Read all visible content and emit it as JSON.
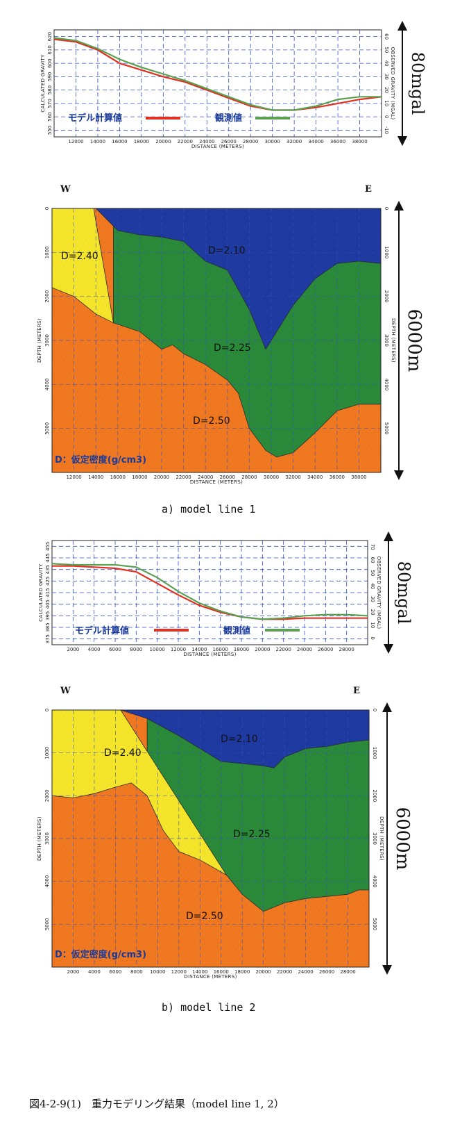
{
  "caption": "図4-2-9(1)　重力モデリング結果（model line 1, 2）",
  "chart_data": [
    {
      "id": "gravity_line1",
      "type": "line",
      "xlabel": "DISTANCE (METERS)",
      "ylabel_left": "CALCULATED GRAVITY",
      "ylabel_right": "OBSERVED GRAVITY (MGAL)",
      "xlim": [
        10000,
        40000
      ],
      "x_ticks": [
        12000,
        14000,
        16000,
        18000,
        20000,
        22000,
        24000,
        26000,
        28000,
        30000,
        32000,
        34000,
        36000,
        38000
      ],
      "y_left_ticks": [
        620,
        610,
        600,
        590,
        580,
        570,
        560,
        550
      ],
      "y_right_ticks": [
        60,
        50,
        40,
        30,
        20,
        10,
        0,
        -10
      ],
      "ylim_left": [
        545,
        625
      ],
      "ylim_right": [
        -15,
        65
      ],
      "scale_label": "80mgal",
      "series": [
        {
          "name": "モデル計算値",
          "color": "#e03020",
          "x": [
            10000,
            12000,
            14000,
            16000,
            18000,
            20000,
            22000,
            24000,
            26000,
            28000,
            30000,
            32000,
            34000,
            36000,
            38000,
            40000
          ],
          "values": [
            618,
            616,
            610,
            600,
            595,
            590,
            586,
            580,
            574,
            568,
            565,
            565,
            567,
            570,
            573,
            575
          ]
        },
        {
          "name": "観測値",
          "color": "#5aa050",
          "x": [
            10000,
            12000,
            14000,
            16000,
            18000,
            20000,
            22000,
            24000,
            26000,
            28000,
            30000,
            32000,
            34000,
            36000,
            38000,
            40000
          ],
          "values": [
            619,
            617,
            611,
            603,
            597,
            592,
            587,
            581,
            575,
            569,
            565,
            565,
            568,
            573,
            575,
            575
          ]
        }
      ]
    },
    {
      "id": "density_line1",
      "type": "area",
      "xlabel": "DISTANCE (METERS)",
      "ylabel_left": "DEPTH (METERS)",
      "ylabel_right": "DEPTH (METERS)",
      "xlim": [
        10000,
        40000
      ],
      "ylim": [
        6000,
        0
      ],
      "x_ticks": [
        12000,
        14000,
        16000,
        18000,
        20000,
        22000,
        24000,
        26000,
        28000,
        30000,
        32000,
        34000,
        36000,
        38000
      ],
      "y_ticks": [
        0,
        1000,
        2000,
        3000,
        4000,
        5000
      ],
      "west_label": "W",
      "east_label": "E",
      "scale_label": "6000m",
      "note": "D：仮定密度(g/cm3)",
      "layers": [
        {
          "name": "D=2.40",
          "color": "#f5e52a",
          "top_x": [
            10000,
            13800
          ],
          "top_y": [
            0,
            0
          ],
          "bottom_x": [
            10000,
            12000,
            14000,
            15600
          ],
          "bottom_y": [
            1800,
            2000,
            2400,
            2600
          ]
        },
        {
          "name": "D=2.10",
          "color": "#1f3aa0",
          "top_x": [
            13800,
            40000
          ],
          "top_y": [
            0,
            0
          ],
          "bottom_x": [
            14000,
            16000,
            18000,
            20000,
            22000,
            24000,
            26000,
            28000,
            29500,
            30500,
            32000,
            34000,
            36000,
            38000,
            40000
          ],
          "bottom_y": [
            0,
            500,
            600,
            650,
            750,
            1200,
            1400,
            2300,
            3200,
            2800,
            2200,
            1600,
            1250,
            1200,
            1250
          ]
        },
        {
          "name": "D=2.25",
          "color": "#2a8a3a",
          "top_x": [
            13800,
            40000
          ],
          "top_y": [
            0,
            0
          ],
          "bottom_x": [
            15600,
            18000,
            20000,
            21000,
            22000,
            24000,
            26000,
            27000,
            28000,
            29500,
            30500,
            32000,
            34000,
            36000,
            38000,
            40000
          ],
          "bottom_y": [
            2600,
            2800,
            3200,
            3100,
            3300,
            3550,
            3900,
            4200,
            5000,
            5500,
            5650,
            5550,
            5100,
            4600,
            4450,
            4450
          ]
        },
        {
          "name": "D=2.50",
          "color": "#f07820",
          "top_x": [
            10000,
            40000
          ],
          "top_y": [
            1800,
            4450
          ],
          "bottom_x": [
            10000,
            40000
          ],
          "bottom_y": [
            6000,
            6000
          ]
        }
      ]
    },
    {
      "id": "gravity_line2",
      "type": "line",
      "xlabel": "DISTANCE (METERS)",
      "ylabel_left": "CALCULATED GRAVITY",
      "ylabel_right": "OBSERVED GRAVITY (MGAL)",
      "xlim": [
        0,
        30000
      ],
      "x_ticks": [
        2000,
        4000,
        6000,
        8000,
        10000,
        12000,
        14000,
        16000,
        18000,
        20000,
        22000,
        24000,
        26000,
        28000
      ],
      "y_left_ticks": [
        455,
        445,
        435,
        425,
        415,
        405,
        395,
        385,
        375
      ],
      "y_right_ticks": [
        70,
        60,
        50,
        40,
        30,
        20,
        10,
        0
      ],
      "ylim_left": [
        370,
        460
      ],
      "ylim_right": [
        -5,
        75
      ],
      "scale_label": "80mgal",
      "series": [
        {
          "name": "モデル計算値",
          "color": "#e03020",
          "x": [
            0,
            2000,
            4000,
            6000,
            8000,
            10000,
            12000,
            14000,
            16000,
            18000,
            20000,
            22000,
            24000,
            26000,
            28000,
            30000
          ],
          "values": [
            438,
            438,
            437,
            436,
            433,
            423,
            413,
            404,
            398,
            394,
            392,
            392,
            393,
            393,
            393,
            393
          ]
        },
        {
          "name": "観測値",
          "color": "#5aa050",
          "x": [
            0,
            2000,
            4000,
            6000,
            8000,
            10000,
            12000,
            14000,
            16000,
            18000,
            20000,
            22000,
            24000,
            26000,
            28000,
            30000
          ],
          "values": [
            440,
            439,
            439,
            439,
            437,
            428,
            416,
            406,
            399,
            394,
            392,
            393,
            395,
            396,
            396,
            395
          ]
        }
      ]
    },
    {
      "id": "density_line2",
      "type": "area",
      "xlabel": "DISTANCE (METERS)",
      "ylabel_left": "DEPTH (METERS)",
      "ylabel_right": "DEPTH (METERS)",
      "xlim": [
        0,
        30000
      ],
      "ylim": [
        6000,
        0
      ],
      "x_ticks": [
        2000,
        4000,
        6000,
        8000,
        10000,
        12000,
        14000,
        16000,
        18000,
        20000,
        22000,
        24000,
        26000,
        28000
      ],
      "y_ticks": [
        0,
        1000,
        2000,
        3000,
        4000,
        5000
      ],
      "west_label": "W",
      "east_label": "E",
      "scale_label": "6000m",
      "note": "D：仮定密度(g/cm3)",
      "layers": [
        {
          "name": "D=2.40",
          "color": "#f5e52a",
          "top_x": [
            0,
            6500
          ],
          "top_y": [
            0,
            0
          ],
          "bottom_x": [
            0,
            2000,
            4000,
            6000,
            7500,
            9000,
            10500,
            12000,
            14000,
            16500
          ],
          "bottom_y": [
            2000,
            2050,
            1950,
            1800,
            1700,
            2000,
            2800,
            3300,
            3500,
            3850
          ]
        },
        {
          "name": "D=2.10",
          "color": "#1f3aa0",
          "top_x": [
            6500,
            30000
          ],
          "top_y": [
            0,
            0
          ],
          "bottom_x": [
            6500,
            9000,
            12000,
            14000,
            16000,
            18000,
            20000,
            21000,
            22000,
            24000,
            26000,
            28000,
            30000
          ],
          "bottom_y": [
            0,
            200,
            600,
            900,
            1200,
            1250,
            1300,
            1350,
            1100,
            900,
            850,
            750,
            700
          ]
        },
        {
          "name": "D=2.25",
          "color": "#2a8a3a",
          "top_x": [
            6500,
            30000
          ],
          "top_y": [
            0,
            0
          ],
          "bottom_x": [
            9000,
            12000,
            14000,
            16500,
            18000,
            20000,
            21000,
            22000,
            24000,
            26000,
            28000,
            29000,
            30000
          ],
          "bottom_y": [
            1100,
            2700,
            3300,
            3850,
            4300,
            4700,
            4600,
            4500,
            4400,
            4350,
            4300,
            4200,
            4200
          ]
        },
        {
          "name": "D=2.50",
          "color": "#f07820",
          "top_x": [
            0,
            30000
          ],
          "top_y": [
            2000,
            4200
          ],
          "bottom_x": [
            0,
            30000
          ],
          "bottom_y": [
            6000,
            6000
          ]
        }
      ]
    }
  ],
  "panels": [
    {
      "legend_model": "モデル計算値",
      "legend_obs": "観測値",
      "sublabel": "a) model line 1"
    },
    {
      "legend_model": "モデル計算値",
      "legend_obs": "観測値",
      "sublabel": "b) model line 2"
    }
  ]
}
